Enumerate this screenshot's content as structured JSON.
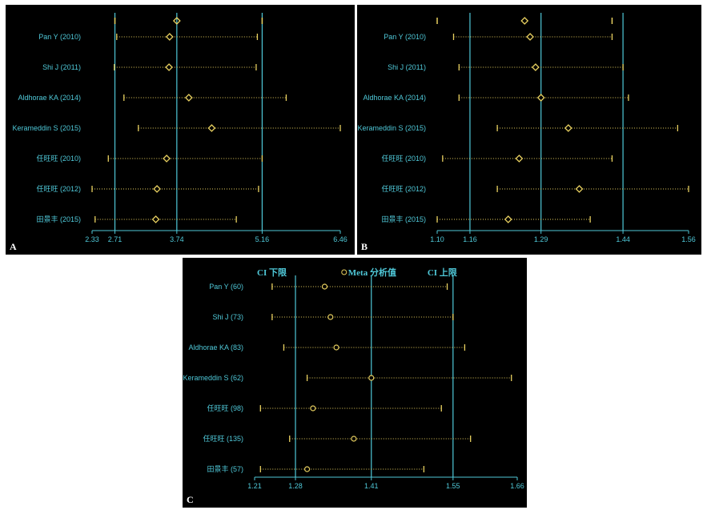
{
  "colors": {
    "background": "#000000",
    "axis": "#4fc8d8",
    "marker": "#e8d060",
    "dotted": "#e8d060"
  },
  "chart_data": [
    {
      "type": "forest",
      "panel_label": "A",
      "marker": "diamond",
      "xlim": [
        2.33,
        6.46
      ],
      "ticks": [
        "2.33",
        "2.71",
        "3.74",
        "5.16",
        "6.46"
      ],
      "ticks_values": [
        2.33,
        2.71,
        3.74,
        5.16,
        6.46
      ],
      "vlines": [
        2.71,
        3.74,
        5.16
      ],
      "overall": {
        "lower": 2.71,
        "estimate": 3.74,
        "upper": 5.16
      },
      "legend": [],
      "studies": [
        {
          "label": "Pan Y (2010)",
          "lower": 2.74,
          "estimate": 3.62,
          "upper": 5.08
        },
        {
          "label": "Shi J (2011)",
          "lower": 2.7,
          "estimate": 3.61,
          "upper": 5.06
        },
        {
          "label": "Aldhorae KA (2014)",
          "lower": 2.86,
          "estimate": 3.94,
          "upper": 5.56
        },
        {
          "label": "Kerameddin S (2015)",
          "lower": 3.1,
          "estimate": 4.32,
          "upper": 6.46
        },
        {
          "label": "任旺旺 (2010)",
          "lower": 2.6,
          "estimate": 3.57,
          "upper": 5.16
        },
        {
          "label": "任旺旺 (2012)",
          "lower": 2.33,
          "estimate": 3.41,
          "upper": 5.1
        },
        {
          "label": "田景丰 (2015)",
          "lower": 2.38,
          "estimate": 3.39,
          "upper": 4.73
        }
      ]
    },
    {
      "type": "forest",
      "panel_label": "B",
      "marker": "diamond",
      "xlim": [
        1.1,
        1.56
      ],
      "ticks": [
        "1.10",
        "1.16",
        "1.29",
        "1.44",
        "1.56"
      ],
      "ticks_values": [
        1.1,
        1.16,
        1.29,
        1.44,
        1.56
      ],
      "vlines": [
        1.16,
        1.29,
        1.44
      ],
      "overall": {
        "lower": 1.1,
        "estimate": 1.26,
        "upper": 1.42
      },
      "legend": [],
      "studies": [
        {
          "label": "Pan Y (2010)",
          "lower": 1.13,
          "estimate": 1.27,
          "upper": 1.42
        },
        {
          "label": "Shi J (2011)",
          "lower": 1.14,
          "estimate": 1.28,
          "upper": 1.44
        },
        {
          "label": "Aldhorae KA (2014)",
          "lower": 1.14,
          "estimate": 1.29,
          "upper": 1.45
        },
        {
          "label": "Kerameddin S (2015)",
          "lower": 1.21,
          "estimate": 1.34,
          "upper": 1.54
        },
        {
          "label": "任旺旺 (2010)",
          "lower": 1.11,
          "estimate": 1.25,
          "upper": 1.42
        },
        {
          "label": "任旺旺 (2012)",
          "lower": 1.21,
          "estimate": 1.36,
          "upper": 1.56
        },
        {
          "label": "田景丰 (2015)",
          "lower": 1.1,
          "estimate": 1.23,
          "upper": 1.38
        }
      ]
    },
    {
      "type": "forest",
      "panel_label": "C",
      "marker": "circle",
      "xlim": [
        1.21,
        1.66
      ],
      "ticks": [
        "1.21",
        "1.28",
        "1.41",
        "1.55",
        "1.66"
      ],
      "ticks_values": [
        1.21,
        1.28,
        1.41,
        1.55,
        1.66
      ],
      "vlines": [
        1.28,
        1.41,
        1.55
      ],
      "overall": null,
      "legend": [
        "CI 下限",
        "Meta 分析值",
        "CI 上限"
      ],
      "studies": [
        {
          "label": "Pan Y (60)",
          "lower": 1.24,
          "estimate": 1.33,
          "upper": 1.54
        },
        {
          "label": "Shi J (73)",
          "lower": 1.24,
          "estimate": 1.34,
          "upper": 1.55
        },
        {
          "label": "Aldhorae KA (83)",
          "lower": 1.26,
          "estimate": 1.35,
          "upper": 1.57
        },
        {
          "label": "Kerameddin S (62)",
          "lower": 1.3,
          "estimate": 1.41,
          "upper": 1.65
        },
        {
          "label": "任旺旺 (98)",
          "lower": 1.22,
          "estimate": 1.31,
          "upper": 1.53
        },
        {
          "label": "任旺旺 (135)",
          "lower": 1.27,
          "estimate": 1.38,
          "upper": 1.58
        },
        {
          "label": "田景丰 (57)",
          "lower": 1.22,
          "estimate": 1.3,
          "upper": 1.5
        }
      ]
    }
  ]
}
